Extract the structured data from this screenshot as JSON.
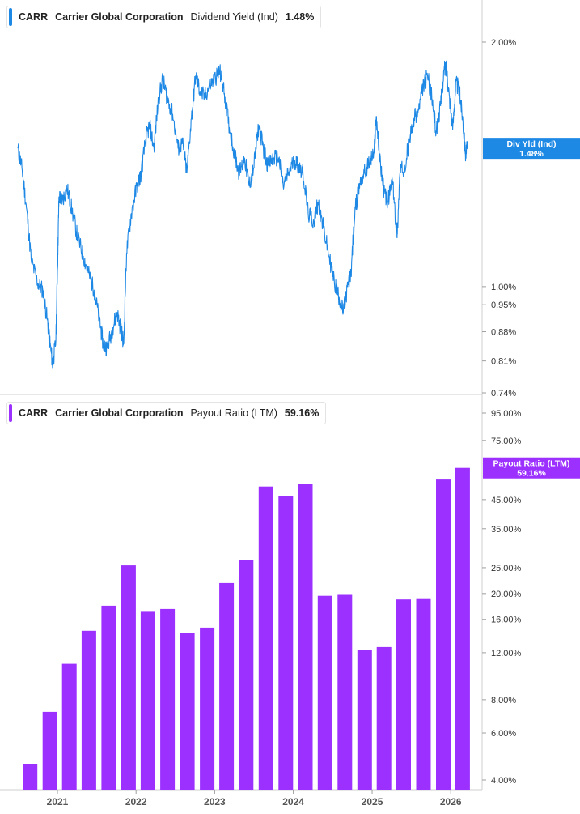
{
  "chart_data": [
    {
      "type": "line",
      "ticker": "CARR",
      "company": "Carrier Global Corporation",
      "metric": "Dividend Yield (Ind)",
      "last_value": "1.48%",
      "badge_line1": "Div Yld (Ind)",
      "badge_line2": "1.48%",
      "color": "#1e88e5",
      "y_scale": "log",
      "y_ticks": [
        {
          "value": 2.0,
          "label": "2.00%"
        },
        {
          "value": 1.0,
          "label": "1.00%"
        },
        {
          "value": 0.95,
          "label": "0.95%"
        },
        {
          "value": 0.88,
          "label": "0.88%"
        },
        {
          "value": 0.81,
          "label": "0.81%"
        },
        {
          "value": 0.74,
          "label": "0.74%"
        }
      ],
      "ylim": [
        0.74,
        2.2
      ],
      "x_range": [
        "2020-07-01",
        "2026-03-20"
      ],
      "series": [
        {
          "points": [
            [
              "2020-07-01",
              1.48
            ],
            [
              "2020-07-20",
              1.4
            ],
            [
              "2020-08-10",
              1.25
            ],
            [
              "2020-09-01",
              1.08
            ],
            [
              "2020-10-01",
              1.01
            ],
            [
              "2020-10-25",
              0.99
            ],
            [
              "2020-11-15",
              0.91
            ],
            [
              "2020-11-28",
              0.85
            ],
            [
              "2020-12-10",
              0.8
            ],
            [
              "2020-12-25",
              0.86
            ],
            [
              "2021-01-03",
              1.1
            ],
            [
              "2021-01-08",
              1.29
            ],
            [
              "2021-01-25",
              1.28
            ],
            [
              "2021-02-15",
              1.32
            ],
            [
              "2021-03-10",
              1.24
            ],
            [
              "2021-04-05",
              1.15
            ],
            [
              "2021-05-01",
              1.09
            ],
            [
              "2021-05-25",
              1.04
            ],
            [
              "2021-06-20",
              0.99
            ],
            [
              "2021-07-15",
              0.91
            ],
            [
              "2021-08-01",
              0.85
            ],
            [
              "2021-08-20",
              0.84
            ],
            [
              "2021-09-15",
              0.89
            ],
            [
              "2021-10-05",
              0.93
            ],
            [
              "2021-10-25",
              0.88
            ],
            [
              "2021-11-05",
              0.85
            ],
            [
              "2021-11-18",
              1.1
            ],
            [
              "2021-12-10",
              1.23
            ],
            [
              "2022-01-05",
              1.33
            ],
            [
              "2022-01-25",
              1.38
            ],
            [
              "2022-02-15",
              1.52
            ],
            [
              "2022-03-05",
              1.58
            ],
            [
              "2022-03-25",
              1.48
            ],
            [
              "2022-04-15",
              1.7
            ],
            [
              "2022-05-05",
              1.8
            ],
            [
              "2022-05-25",
              1.71
            ],
            [
              "2022-06-20",
              1.63
            ],
            [
              "2022-07-15",
              1.48
            ],
            [
              "2022-08-05",
              1.5
            ],
            [
              "2022-08-25",
              1.38
            ],
            [
              "2022-09-15",
              1.61
            ],
            [
              "2022-10-05",
              1.82
            ],
            [
              "2022-10-25",
              1.74
            ],
            [
              "2022-11-15",
              1.71
            ],
            [
              "2022-12-10",
              1.77
            ],
            [
              "2023-01-05",
              1.81
            ],
            [
              "2023-01-25",
              1.84
            ],
            [
              "2023-02-15",
              1.73
            ],
            [
              "2023-03-10",
              1.57
            ],
            [
              "2023-04-05",
              1.45
            ],
            [
              "2023-04-25",
              1.38
            ],
            [
              "2023-05-20",
              1.44
            ],
            [
              "2023-06-10",
              1.33
            ],
            [
              "2023-07-01",
              1.4
            ],
            [
              "2023-07-25",
              1.58
            ],
            [
              "2023-08-15",
              1.48
            ],
            [
              "2023-09-05",
              1.41
            ],
            [
              "2023-10-01",
              1.44
            ],
            [
              "2023-10-25",
              1.44
            ],
            [
              "2023-11-15",
              1.33
            ],
            [
              "2023-12-10",
              1.38
            ],
            [
              "2024-01-05",
              1.43
            ],
            [
              "2024-01-25",
              1.41
            ],
            [
              "2024-02-15",
              1.38
            ],
            [
              "2024-03-10",
              1.23
            ],
            [
              "2024-04-05",
              1.2
            ],
            [
              "2024-04-25",
              1.27
            ],
            [
              "2024-05-20",
              1.18
            ],
            [
              "2024-06-15",
              1.09
            ],
            [
              "2024-07-10",
              1.01
            ],
            [
              "2024-08-01",
              0.97
            ],
            [
              "2024-08-20",
              0.93
            ],
            [
              "2024-09-10",
              1.0
            ],
            [
              "2024-09-25",
              1.04
            ],
            [
              "2024-10-15",
              1.25
            ],
            [
              "2024-11-05",
              1.34
            ],
            [
              "2024-11-25",
              1.38
            ],
            [
              "2024-12-20",
              1.42
            ],
            [
              "2025-01-10",
              1.46
            ],
            [
              "2025-01-20",
              1.62
            ],
            [
              "2025-02-05",
              1.44
            ],
            [
              "2025-02-25",
              1.31
            ],
            [
              "2025-03-15",
              1.27
            ],
            [
              "2025-04-05",
              1.35
            ],
            [
              "2025-04-20",
              1.21
            ],
            [
              "2025-04-28",
              1.16
            ],
            [
              "2025-05-10",
              1.38
            ],
            [
              "2025-06-01",
              1.41
            ],
            [
              "2025-06-25",
              1.52
            ],
            [
              "2025-07-15",
              1.61
            ],
            [
              "2025-08-05",
              1.65
            ],
            [
              "2025-08-25",
              1.76
            ],
            [
              "2025-09-15",
              1.82
            ],
            [
              "2025-10-05",
              1.71
            ],
            [
              "2025-10-25",
              1.55
            ],
            [
              "2025-11-15",
              1.67
            ],
            [
              "2025-12-01",
              1.85
            ],
            [
              "2025-12-12",
              1.86
            ],
            [
              "2025-12-25",
              1.72
            ],
            [
              "2026-01-10",
              1.56
            ],
            [
              "2026-01-25",
              1.79
            ],
            [
              "2026-02-10",
              1.74
            ],
            [
              "2026-02-25",
              1.62
            ],
            [
              "2026-03-10",
              1.46
            ],
            [
              "2026-03-20",
              1.48
            ]
          ]
        }
      ]
    },
    {
      "type": "bar",
      "ticker": "CARR",
      "company": "Carrier Global Corporation",
      "metric": "Payout Ratio (LTM)",
      "last_value": "59.16%",
      "badge_line1": "Payout Ratio (LTM)",
      "badge_line2": "59.16%",
      "color": "#9b30ff",
      "y_scale": "log",
      "y_ticks": [
        {
          "value": 95,
          "label": "95.00%"
        },
        {
          "value": 75,
          "label": "75.00%"
        },
        {
          "value": 45,
          "label": "45.00%"
        },
        {
          "value": 35,
          "label": "35.00%"
        },
        {
          "value": 25,
          "label": "25.00%"
        },
        {
          "value": 20,
          "label": "20.00%"
        },
        {
          "value": 16,
          "label": "16.00%"
        },
        {
          "value": 12,
          "label": "12.00%"
        },
        {
          "value": 8,
          "label": "8.00%"
        },
        {
          "value": 6,
          "label": "6.00%"
        },
        {
          "value": 4,
          "label": "4.00%"
        }
      ],
      "ylim": [
        3.7,
        100
      ],
      "categories": [
        "2020-09-30",
        "2020-12-31",
        "2021-03-31",
        "2021-06-30",
        "2021-09-30",
        "2021-12-31",
        "2022-03-31",
        "2022-06-30",
        "2022-09-30",
        "2022-12-31",
        "2023-03-31",
        "2023-06-30",
        "2023-09-30",
        "2023-12-31",
        "2024-03-31",
        "2024-06-30",
        "2024-09-30",
        "2024-12-31",
        "2025-03-31",
        "2025-06-30",
        "2025-09-30",
        "2025-12-31",
        "2026-03-31"
      ],
      "values": [
        4.6,
        7.2,
        10.9,
        14.5,
        18.0,
        25.5,
        17.2,
        17.5,
        14.2,
        14.9,
        21.9,
        26.7,
        50.4,
        46.5,
        51.5,
        19.6,
        19.9,
        12.3,
        12.6,
        19.0,
        19.2,
        53.5,
        59.16
      ]
    }
  ],
  "x_axis": {
    "ticks": [
      {
        "date": "2021-01-01",
        "label": "2021"
      },
      {
        "date": "2022-01-01",
        "label": "2022"
      },
      {
        "date": "2023-01-01",
        "label": "2023"
      },
      {
        "date": "2024-01-01",
        "label": "2024"
      },
      {
        "date": "2025-01-01",
        "label": "2025"
      },
      {
        "date": "2026-01-01",
        "label": "2026"
      }
    ]
  }
}
